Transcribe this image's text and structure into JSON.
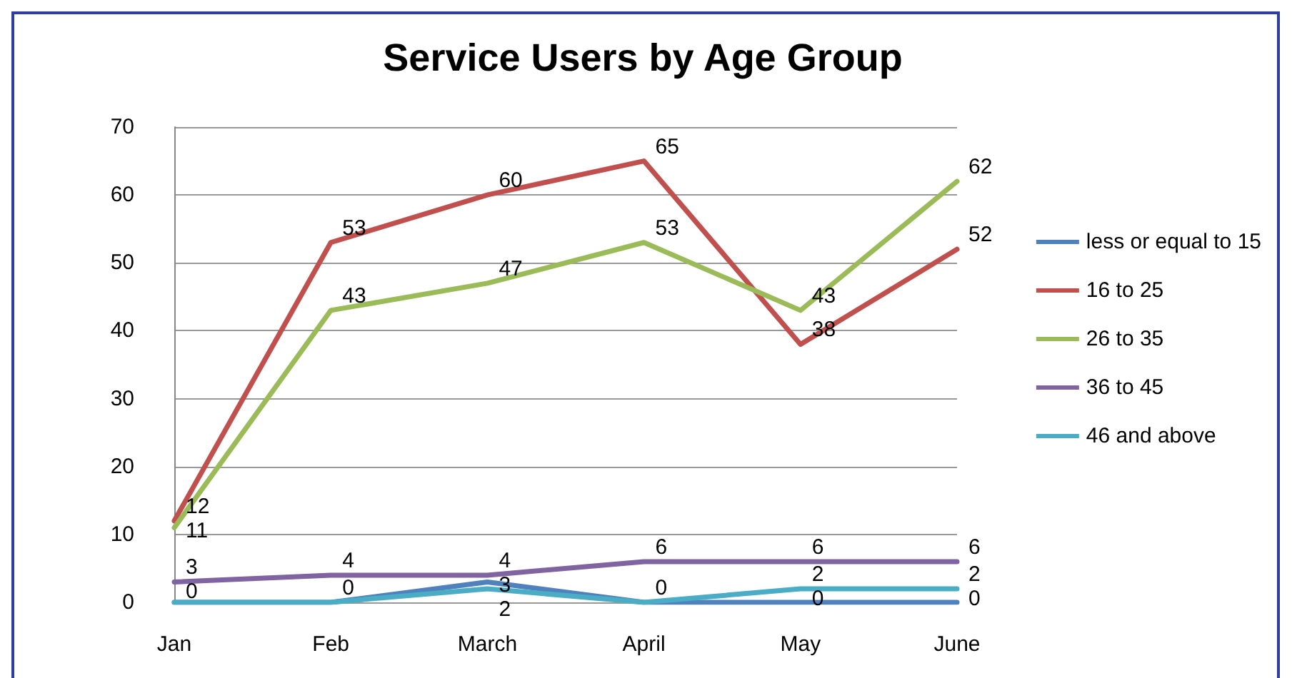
{
  "chart_data": {
    "type": "line",
    "title": "Service Users by Age Group",
    "categories": [
      "Jan",
      "Feb",
      "March",
      "April",
      "May",
      "June"
    ],
    "series": [
      {
        "name": "less or equal to 15",
        "color": "#4f81bd",
        "values": [
          0,
          0,
          3,
          0,
          0,
          0
        ],
        "value_labels": [
          "0",
          "0",
          "3",
          "0",
          "0",
          "0"
        ]
      },
      {
        "name": "16 to 25",
        "color": "#c0504d",
        "values": [
          12,
          53,
          60,
          65,
          38,
          52
        ],
        "value_labels": [
          "12",
          "53",
          "60",
          "65",
          "38",
          "52"
        ]
      },
      {
        "name": "26 to 35",
        "color": "#9bbb59",
        "values": [
          11,
          43,
          47,
          53,
          43,
          62
        ],
        "value_labels": [
          "11",
          "43",
          "47",
          "53",
          "43",
          "62"
        ]
      },
      {
        "name": "36 to 45",
        "color": "#8064a2",
        "values": [
          3,
          4,
          4,
          6,
          6,
          6
        ],
        "value_labels": [
          "3",
          "4",
          "4",
          "6",
          "6",
          "6"
        ]
      },
      {
        "name": "46 and above",
        "color": "#4bacc6",
        "values": [
          0,
          0,
          2,
          0,
          2,
          2
        ],
        "value_labels": [
          null,
          null,
          "2",
          null,
          "2",
          "2"
        ]
      }
    ],
    "ylim": [
      0,
      70
    ],
    "yticks": [
      0,
      10,
      20,
      30,
      40,
      50,
      60,
      70
    ],
    "grid": "y",
    "legend": "right",
    "marker": "none"
  }
}
